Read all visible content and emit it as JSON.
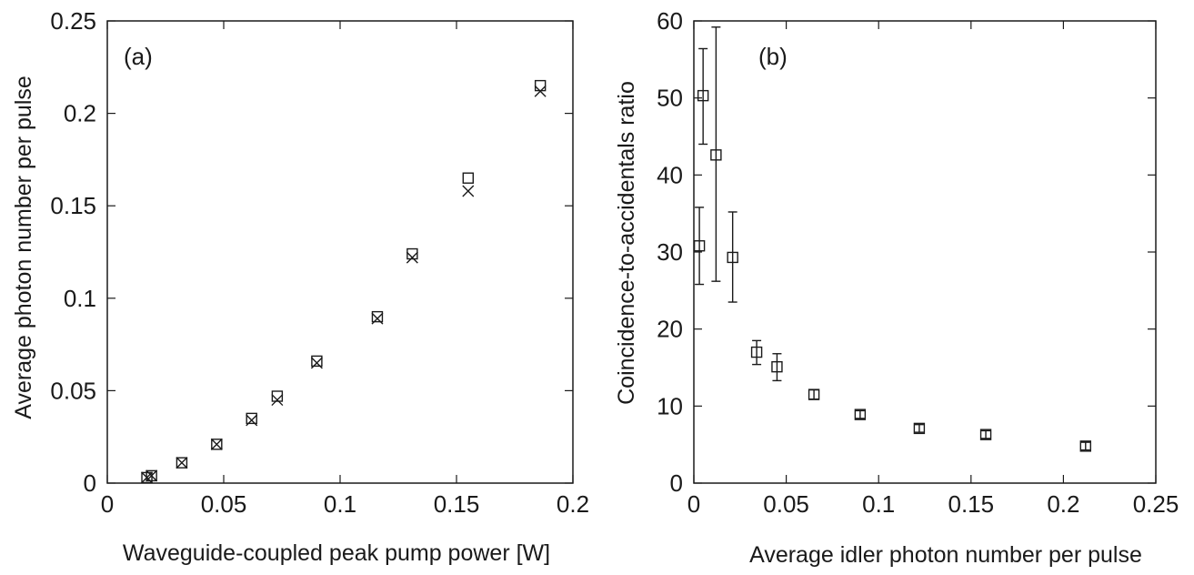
{
  "chart_data": [
    {
      "type": "scatter",
      "panel_label": "(a)",
      "title": "",
      "xlabel": "Waveguide-coupled peak pump power [W]",
      "ylabel": "Average photon number per pulse",
      "xlim": [
        0,
        0.2
      ],
      "ylim": [
        0,
        0.25
      ],
      "xticks": [
        0,
        0.05,
        0.1,
        0.15,
        0.2
      ],
      "xtick_labels": [
        "0",
        "0.05",
        "0.1",
        "0.15",
        "0.2"
      ],
      "yticks": [
        0,
        0.05,
        0.1,
        0.15,
        0.2,
        0.25
      ],
      "ytick_labels": [
        "0",
        "0.05",
        "0.1",
        "0.15",
        "0.2",
        "0.25"
      ],
      "grid": false,
      "legend": false,
      "series": [
        {
          "marker": "square",
          "x": [
            0.017,
            0.019,
            0.032,
            0.047,
            0.062,
            0.073,
            0.09,
            0.116,
            0.131,
            0.155,
            0.186
          ],
          "y": [
            0.003,
            0.004,
            0.011,
            0.021,
            0.035,
            0.047,
            0.066,
            0.09,
            0.124,
            0.165,
            0.215
          ]
        },
        {
          "marker": "x",
          "x": [
            0.017,
            0.019,
            0.032,
            0.047,
            0.062,
            0.073,
            0.09,
            0.116,
            0.131,
            0.155,
            0.186
          ],
          "y": [
            0.003,
            0.004,
            0.011,
            0.021,
            0.034,
            0.045,
            0.065,
            0.089,
            0.122,
            0.158,
            0.212
          ]
        }
      ]
    },
    {
      "type": "scatter",
      "panel_label": "(b)",
      "title": "",
      "xlabel": "Average idler photon number per pulse",
      "ylabel": "Coincidence-to-accidentals ratio",
      "xlim": [
        0,
        0.25
      ],
      "ylim": [
        0,
        60
      ],
      "xticks": [
        0,
        0.05,
        0.1,
        0.15,
        0.2,
        0.25
      ],
      "xtick_labels": [
        "0",
        "0.05",
        "0.1",
        "0.15",
        "0.2",
        "0.25"
      ],
      "yticks": [
        0,
        10,
        20,
        30,
        40,
        50,
        60
      ],
      "ytick_labels": [
        "0",
        "10",
        "20",
        "30",
        "40",
        "50",
        "60"
      ],
      "grid": false,
      "legend": false,
      "series": [
        {
          "marker": "square",
          "error_bars": true,
          "x": [
            0.003,
            0.005,
            0.012,
            0.021,
            0.034,
            0.045,
            0.065,
            0.09,
            0.122,
            0.158,
            0.212
          ],
          "y": [
            30.8,
            50.3,
            42.6,
            29.3,
            17.0,
            15.1,
            11.5,
            8.9,
            7.1,
            6.3,
            4.8
          ],
          "y_err_low": [
            5.0,
            6.3,
            16.4,
            5.8,
            1.6,
            1.8,
            0.6,
            0.5,
            0.5,
            0.5,
            0.5
          ],
          "y_err_high": [
            5.0,
            6.1,
            16.6,
            5.9,
            1.5,
            1.7,
            0.6,
            0.5,
            0.5,
            0.5,
            0.5
          ]
        }
      ]
    }
  ]
}
